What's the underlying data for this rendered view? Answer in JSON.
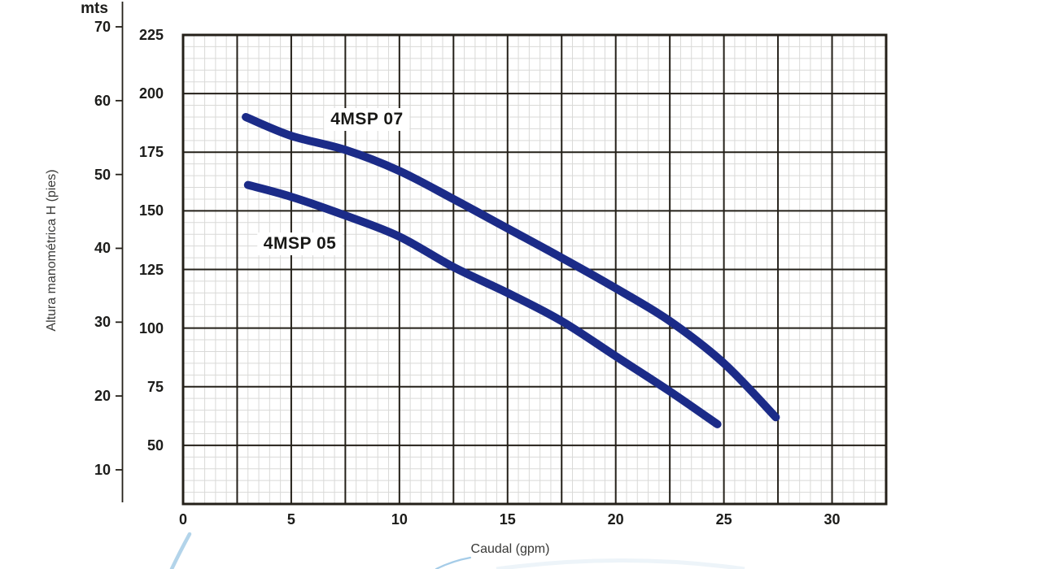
{
  "chart_data": {
    "type": "line",
    "title": "",
    "xlabel": "Caudal (gpm)",
    "ylabel": "Altura manométrica H (pies)",
    "grid": true,
    "x_axis": {
      "min": 0,
      "max": 32.5,
      "major_step": 2.5,
      "minor_step": 0.5,
      "tick_labels": [
        "0",
        "5",
        "10",
        "15",
        "20",
        "25",
        "30"
      ],
      "tick_values": [
        0,
        5,
        10,
        15,
        20,
        25,
        30
      ]
    },
    "y_axis_pies": {
      "min": 25,
      "max": 225,
      "major_step": 25,
      "minor_step": 5,
      "tick_labels": [
        "225",
        "200",
        "175",
        "150",
        "125",
        "100",
        "75",
        "50"
      ],
      "tick_values": [
        225,
        200,
        175,
        150,
        125,
        100,
        75,
        50
      ]
    },
    "y_axis_mts": {
      "unit_label": "mts",
      "tick_labels": [
        "70",
        "60",
        "50",
        "40",
        "30",
        "20",
        "10"
      ],
      "tick_values": [
        70,
        60,
        50,
        40,
        30,
        20,
        10
      ]
    },
    "series": [
      {
        "name": "4MSP 07",
        "color": "#1b2b88",
        "points": [
          [
            2.9,
            190
          ],
          [
            5,
            182
          ],
          [
            7.5,
            176
          ],
          [
            10,
            167
          ],
          [
            12.5,
            155
          ],
          [
            15,
            142.5
          ],
          [
            17.5,
            130
          ],
          [
            20,
            117
          ],
          [
            22.5,
            103
          ],
          [
            25,
            85
          ],
          [
            27.4,
            62
          ]
        ],
        "label_anchor": [
          8.5,
          189
        ]
      },
      {
        "name": "4MSP 05",
        "color": "#1b2b88",
        "points": [
          [
            3,
            161
          ],
          [
            5,
            156
          ],
          [
            7.5,
            148
          ],
          [
            10,
            139
          ],
          [
            12.5,
            126
          ],
          [
            15,
            115
          ],
          [
            17.5,
            103
          ],
          [
            20,
            88
          ],
          [
            22.5,
            73
          ],
          [
            24.7,
            59
          ]
        ],
        "label_anchor": [
          5.4,
          136
        ]
      }
    ],
    "legend_position": "inline-curve-labels"
  },
  "colors": {
    "major_grid": "#242019",
    "minor_grid": "#d9d9d7",
    "curve": "#1b2b88",
    "watermark_strong": "#b3d4ea",
    "watermark_mid": "#a5cce8",
    "watermark_faint": "#edf4f9",
    "text": "#1c1c1a"
  }
}
